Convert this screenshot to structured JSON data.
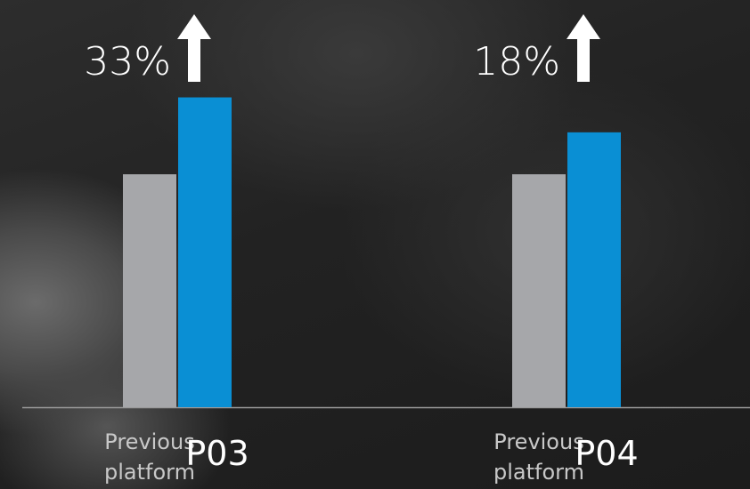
{
  "chart_data": {
    "type": "bar",
    "categories": [
      "P03",
      "P04"
    ],
    "series": [
      {
        "values": [
          100,
          100
        ],
        "color": "#a6a7aa"
      },
      {
        "values": [
          133,
          118
        ],
        "color": "#0a8fd4"
      }
    ],
    "bar_labels": [
      [
        "Previous",
        "platform"
      ],
      [
        "Previous",
        "platform"
      ]
    ],
    "annotations": [
      {
        "category": "P03",
        "text": "33%",
        "icon": "up-arrow-icon"
      },
      {
        "category": "P04",
        "text": "18%",
        "icon": "up-arrow-icon"
      }
    ],
    "baseline_color": "#9a9a9a"
  }
}
